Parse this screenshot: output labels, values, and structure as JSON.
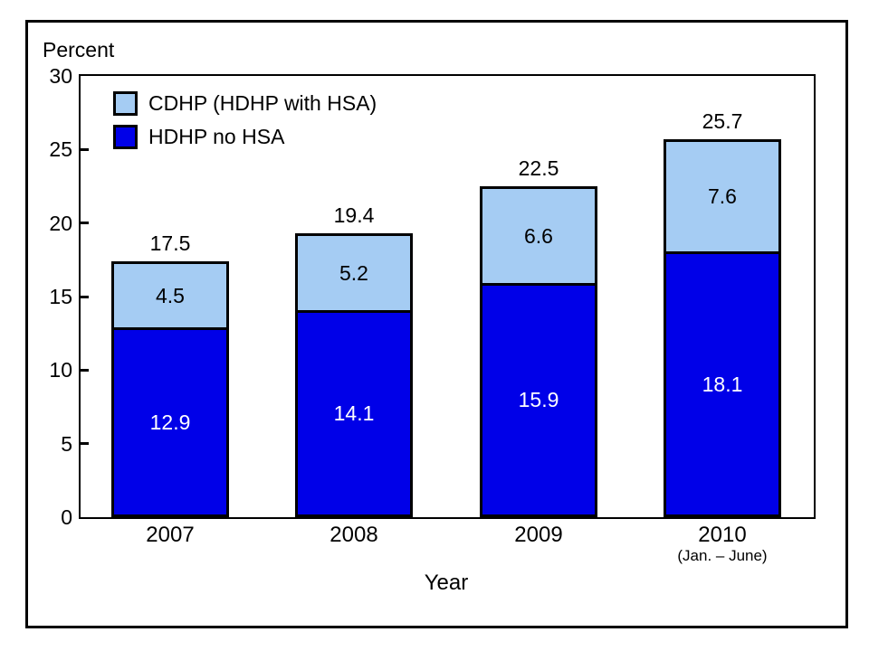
{
  "colors": {
    "cdhp_light_blue": "#a5ccf3",
    "hdhp_dark_blue": "#0000e8",
    "border": "#000000",
    "background": "#ffffff",
    "dark_segment_text": "#ffffff"
  },
  "chart_data": {
    "type": "bar",
    "stacked": true,
    "ylabel": "Percent",
    "xlabel": "Year",
    "ylim": [
      0,
      30
    ],
    "yticks": [
      0,
      5,
      10,
      15,
      20,
      25,
      30
    ],
    "grid": false,
    "legend_position": "top-left-inside",
    "legend": [
      {
        "label": "CDHP (HDHP with HSA)",
        "series_key": "cdhp"
      },
      {
        "label": "HDHP no HSA",
        "series_key": "hdhp"
      }
    ],
    "categories": [
      "2007",
      "2008",
      "2009",
      "2010"
    ],
    "category_sublabels": [
      "",
      "",
      "",
      "(Jan. – June)"
    ],
    "series": [
      {
        "name": "HDHP no HSA",
        "key": "hdhp",
        "values": [
          12.9,
          14.1,
          15.9,
          18.1
        ]
      },
      {
        "name": "CDHP (HDHP with HSA)",
        "key": "cdhp",
        "values": [
          4.5,
          5.2,
          6.6,
          7.6
        ]
      }
    ],
    "totals": [
      17.5,
      19.4,
      22.5,
      25.7
    ]
  }
}
